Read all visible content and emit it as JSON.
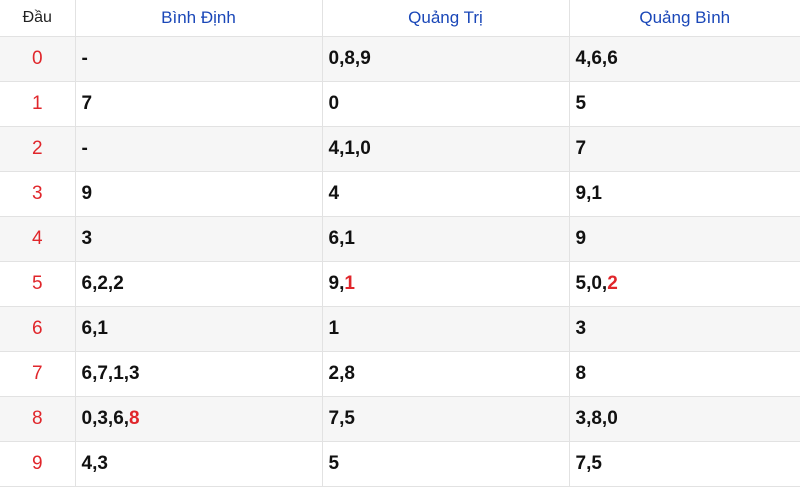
{
  "header": {
    "dau": "Đầu",
    "provinces": [
      "Bình Định",
      "Quảng Trị",
      "Quảng Bình"
    ]
  },
  "colors": {
    "highlight": "#e0262b",
    "header_link": "#1a47b8"
  },
  "rows": [
    {
      "head": "0",
      "cells": [
        {
          "text": "-",
          "hl": ""
        },
        {
          "text": "0,8,9",
          "hl": ""
        },
        {
          "text": "4,6,6",
          "hl": ""
        }
      ]
    },
    {
      "head": "1",
      "cells": [
        {
          "text": "7",
          "hl": ""
        },
        {
          "text": "0",
          "hl": ""
        },
        {
          "text": "5",
          "hl": ""
        }
      ]
    },
    {
      "head": "2",
      "cells": [
        {
          "text": "-",
          "hl": ""
        },
        {
          "text": "4,1,0",
          "hl": ""
        },
        {
          "text": "7",
          "hl": ""
        }
      ]
    },
    {
      "head": "3",
      "cells": [
        {
          "text": "9",
          "hl": ""
        },
        {
          "text": "4",
          "hl": ""
        },
        {
          "text": "9,1",
          "hl": ""
        }
      ]
    },
    {
      "head": "4",
      "cells": [
        {
          "text": "3",
          "hl": ""
        },
        {
          "text": "6,1",
          "hl": ""
        },
        {
          "text": "9",
          "hl": ""
        }
      ]
    },
    {
      "head": "5",
      "cells": [
        {
          "text": "6,2,2",
          "hl": ""
        },
        {
          "text": "9,",
          "hl": "1"
        },
        {
          "text": "5,0,",
          "hl": "2"
        }
      ]
    },
    {
      "head": "6",
      "cells": [
        {
          "text": "6,1",
          "hl": ""
        },
        {
          "text": "1",
          "hl": ""
        },
        {
          "text": "3",
          "hl": ""
        }
      ]
    },
    {
      "head": "7",
      "cells": [
        {
          "text": "6,7,1,3",
          "hl": ""
        },
        {
          "text": "2,8",
          "hl": ""
        },
        {
          "text": "8",
          "hl": ""
        }
      ]
    },
    {
      "head": "8",
      "cells": [
        {
          "text": "0,3,6,",
          "hl": "8"
        },
        {
          "text": "7,5",
          "hl": ""
        },
        {
          "text": "3,8,0",
          "hl": ""
        }
      ]
    },
    {
      "head": "9",
      "cells": [
        {
          "text": "4,3",
          "hl": ""
        },
        {
          "text": "5",
          "hl": ""
        },
        {
          "text": "7,5",
          "hl": ""
        }
      ]
    }
  ]
}
